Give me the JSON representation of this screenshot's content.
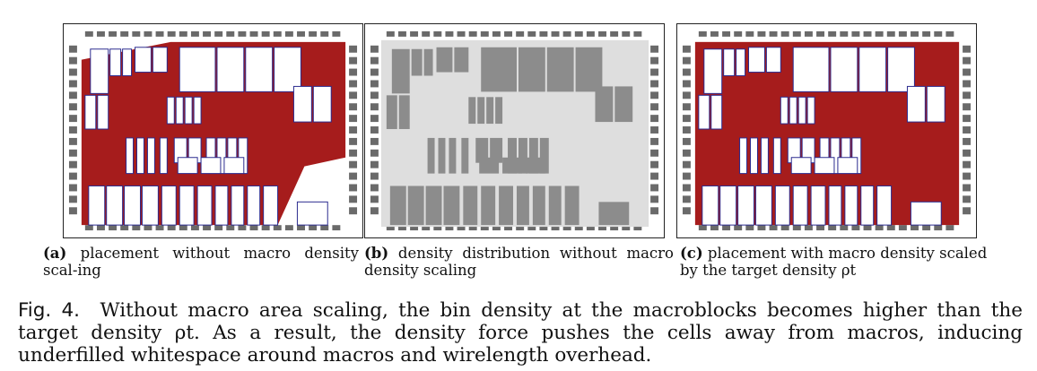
{
  "figure": {
    "panels": [
      {
        "id": "a",
        "label": "(a)",
        "caption": "placement without macro density scal-ing",
        "style": "red"
      },
      {
        "id": "b",
        "label": "(b)",
        "caption": "density distribution without macro density scaling",
        "style": "gray"
      },
      {
        "id": "c",
        "label": "(c)",
        "caption": "placement with macro density scaled by the target density ρt",
        "style": "red-full"
      }
    ],
    "caption_label": "Fig. 4.",
    "caption_text": "Without macro area scaling, the bin density at the macroblocks becomes higher than the target density ρt. As a result, the density force pushes the cells away from macros, inducing underfilled whitespace around macros and wirelength overhead."
  },
  "colors": {
    "cell_fill": "#a61c1c",
    "macro_fill": "#ffffff",
    "macro_stroke": "#2b2b8f",
    "pad_fill": "#6a6a6a",
    "gray_macro": "#8c8c8c",
    "gray_bg": "#dedede"
  }
}
